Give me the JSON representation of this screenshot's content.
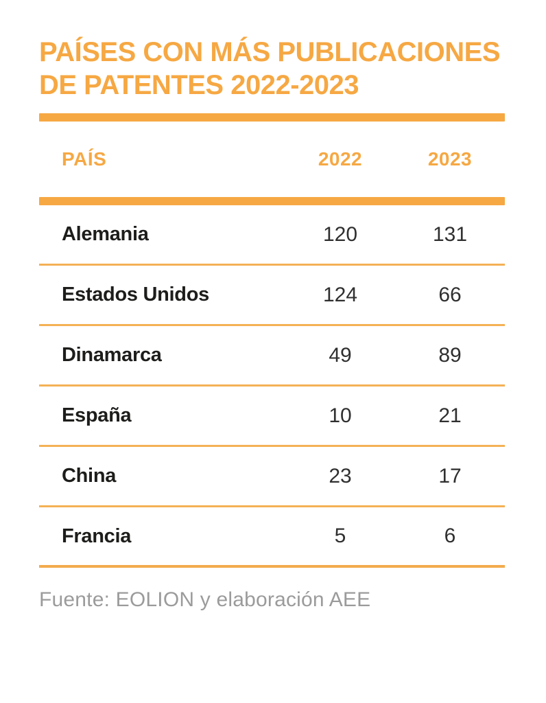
{
  "title": {
    "line1": "PAÍSES CON MÁS PUBLICACIONES",
    "line2": "DE PATENTES 2022-2023"
  },
  "source": "Fuente: EOLION y elaboración AEE",
  "colors": {
    "accent": "#F6A843",
    "separator": "#F4B155",
    "country_text": "#1D1D1B",
    "value_text": "#2F2F2F",
    "source_text": "#9B9B9B",
    "background": "#FFFFFF"
  },
  "chart_data": {
    "type": "table",
    "title": "PAÍSES CON MÁS PUBLICACIONES DE PATENTES 2022-2023",
    "columns": [
      "PAÍS",
      "2022",
      "2023"
    ],
    "rows": [
      [
        "Alemania",
        120,
        131
      ],
      [
        "Estados Unidos",
        124,
        66
      ],
      [
        "Dinamarca",
        49,
        89
      ],
      [
        "España",
        10,
        21
      ],
      [
        "China",
        23,
        17
      ],
      [
        "Francia",
        5,
        6
      ]
    ],
    "source": "Fuente: EOLION y elaboración AEE",
    "layout": {
      "grid": "horizontal row separators only",
      "header_color": "orange",
      "value_alignment": "center"
    }
  }
}
